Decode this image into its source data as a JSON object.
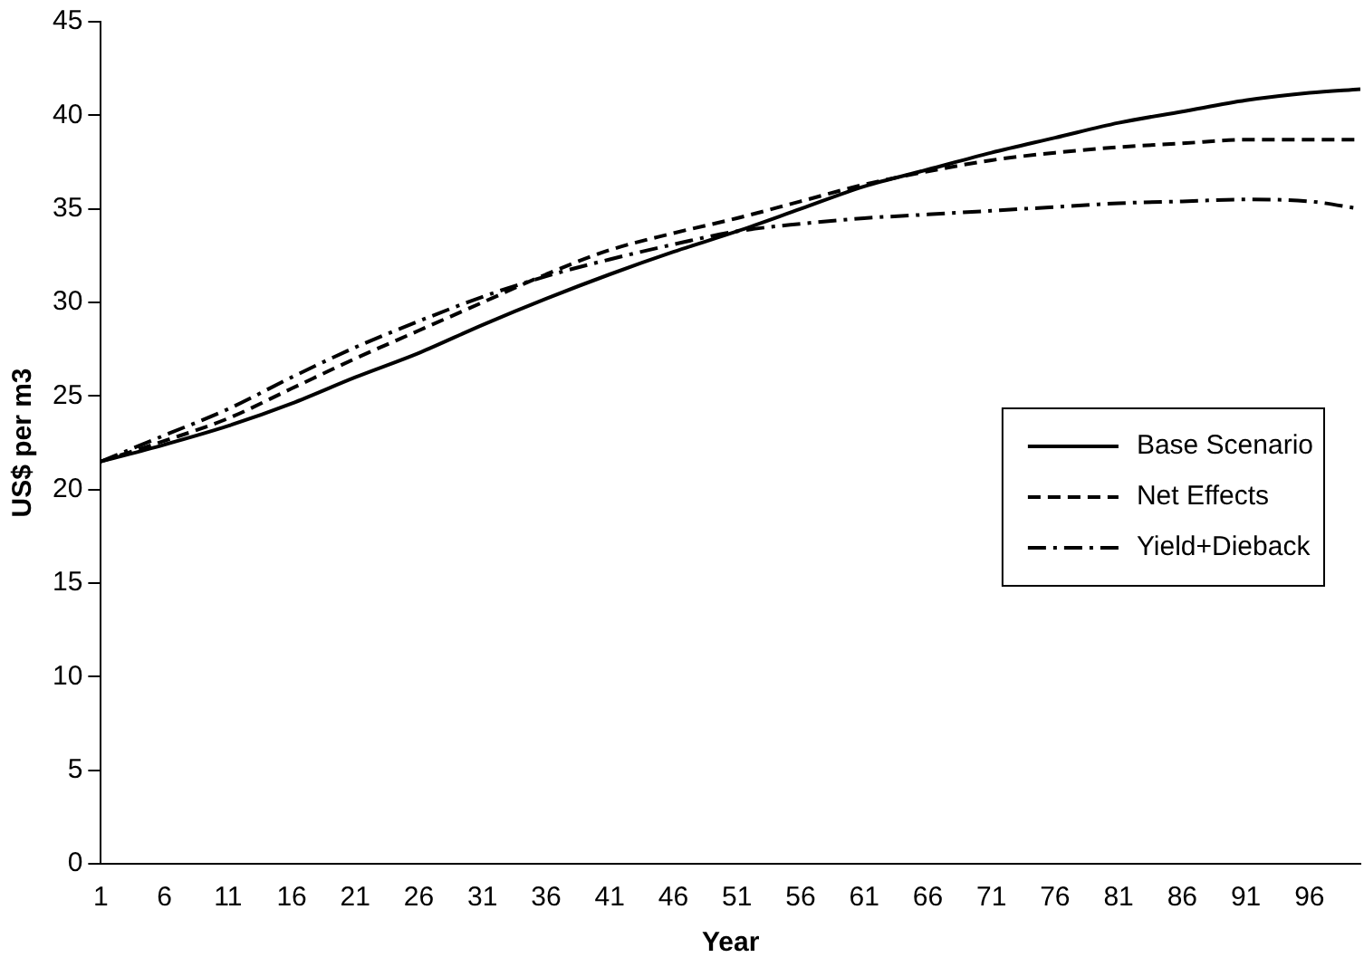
{
  "chart_data": {
    "type": "line",
    "xlabel": "Year",
    "ylabel": "US$ per m3",
    "x": [
      1,
      6,
      11,
      16,
      21,
      26,
      31,
      36,
      41,
      46,
      51,
      56,
      61,
      66,
      71,
      76,
      81,
      86,
      91,
      96,
      100
    ],
    "series": [
      {
        "name": "Base Scenario",
        "color": "#000000",
        "line_style": "solid",
        "values": [
          21.5,
          22.4,
          23.4,
          24.6,
          26,
          27.3,
          28.8,
          30.2,
          31.5,
          32.7,
          33.8,
          35,
          36.2,
          37.1,
          38,
          38.8,
          39.6,
          40.2,
          40.8,
          41.2,
          41.4
        ]
      },
      {
        "name": "Net Effects",
        "color": "#000000",
        "line_style": "dashed",
        "values": [
          21.5,
          22.6,
          23.8,
          25.4,
          27,
          28.5,
          30,
          31.5,
          32.8,
          33.7,
          34.5,
          35.4,
          36.3,
          37,
          37.6,
          38,
          38.3,
          38.5,
          38.7,
          38.7,
          38.7
        ]
      },
      {
        "name": "Yield+Dieback",
        "color": "#000000",
        "line_style": "dashdot",
        "values": [
          21.5,
          22.9,
          24.3,
          26,
          27.6,
          29,
          30.3,
          31.4,
          32.3,
          33.1,
          33.8,
          34.2,
          34.5,
          34.7,
          34.9,
          35.1,
          35.3,
          35.4,
          35.5,
          35.4,
          35.0
        ]
      }
    ],
    "xlim": [
      1,
      100
    ],
    "xticks": [
      1,
      6,
      11,
      16,
      21,
      26,
      31,
      36,
      41,
      46,
      51,
      56,
      61,
      66,
      71,
      76,
      81,
      86,
      91,
      96
    ],
    "ylim": [
      0,
      45
    ],
    "yticks": [
      0,
      5,
      10,
      15,
      20,
      25,
      30,
      35,
      40,
      45
    ],
    "grid": false,
    "legend": "center right",
    "marker": "none"
  }
}
